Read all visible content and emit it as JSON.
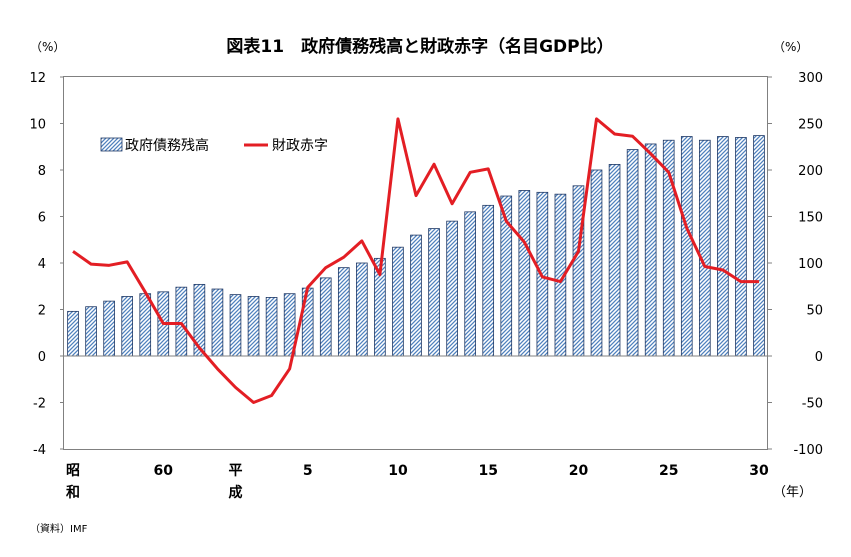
{
  "chart_data": {
    "type": "bar",
    "title": "図表11　政府債務残高と財政赤字（名目GDP比）",
    "left_unit": "（%）",
    "right_unit": "（%）",
    "year_unit": "（年）",
    "source": "（資料）IMF",
    "y_left": {
      "min": -4,
      "max": 12,
      "step": 2,
      "ticks": [
        "-4",
        "-2",
        "0",
        "2",
        "4",
        "6",
        "8",
        "10",
        "12"
      ]
    },
    "y_right": {
      "min": -100,
      "max": 300,
      "step": 50,
      "ticks": [
        "-100",
        "-50",
        "0",
        "50",
        "100",
        "150",
        "200",
        "250",
        "300"
      ]
    },
    "x_labels": [
      {
        "index": 0,
        "lines": [
          "昭",
          "和"
        ]
      },
      {
        "index": 5,
        "lines": [
          "60"
        ]
      },
      {
        "index": 9,
        "lines": [
          "平",
          "成"
        ]
      },
      {
        "index": 13,
        "lines": [
          "5"
        ]
      },
      {
        "index": 18,
        "lines": [
          "10"
        ]
      },
      {
        "index": 23,
        "lines": [
          "15"
        ]
      },
      {
        "index": 28,
        "lines": [
          "20"
        ]
      },
      {
        "index": 33,
        "lines": [
          "25"
        ]
      },
      {
        "index": 38,
        "lines": [
          "30"
        ]
      }
    ],
    "series": [
      {
        "name": "政府債務残高",
        "type": "bar",
        "axis": "right",
        "color": "#4f81bd",
        "values": [
          48,
          53,
          59,
          64,
          67,
          69,
          74,
          77,
          72,
          66,
          64,
          63,
          67,
          73,
          84,
          95,
          100,
          105,
          117,
          130,
          137,
          145,
          155,
          162,
          172,
          178,
          176,
          174,
          183,
          200,
          206,
          222,
          228,
          232,
          236,
          232,
          236,
          235,
          237
        ]
      },
      {
        "name": "財政赤字",
        "type": "line",
        "axis": "left",
        "color": "#e31e24",
        "values": [
          4.5,
          3.95,
          3.9,
          4.05,
          2.75,
          1.4,
          1.4,
          0.35,
          -0.55,
          -1.35,
          -2.0,
          -1.7,
          -0.55,
          2.95,
          3.8,
          4.25,
          4.95,
          3.5,
          10.2,
          6.9,
          8.25,
          6.55,
          7.9,
          8.05,
          5.8,
          4.9,
          3.4,
          3.2,
          4.5,
          10.2,
          9.55,
          9.45,
          8.7,
          7.9,
          5.5,
          3.85,
          3.7,
          3.2,
          3.2
        ]
      }
    ],
    "legend_position": "top-left",
    "grid": false
  }
}
